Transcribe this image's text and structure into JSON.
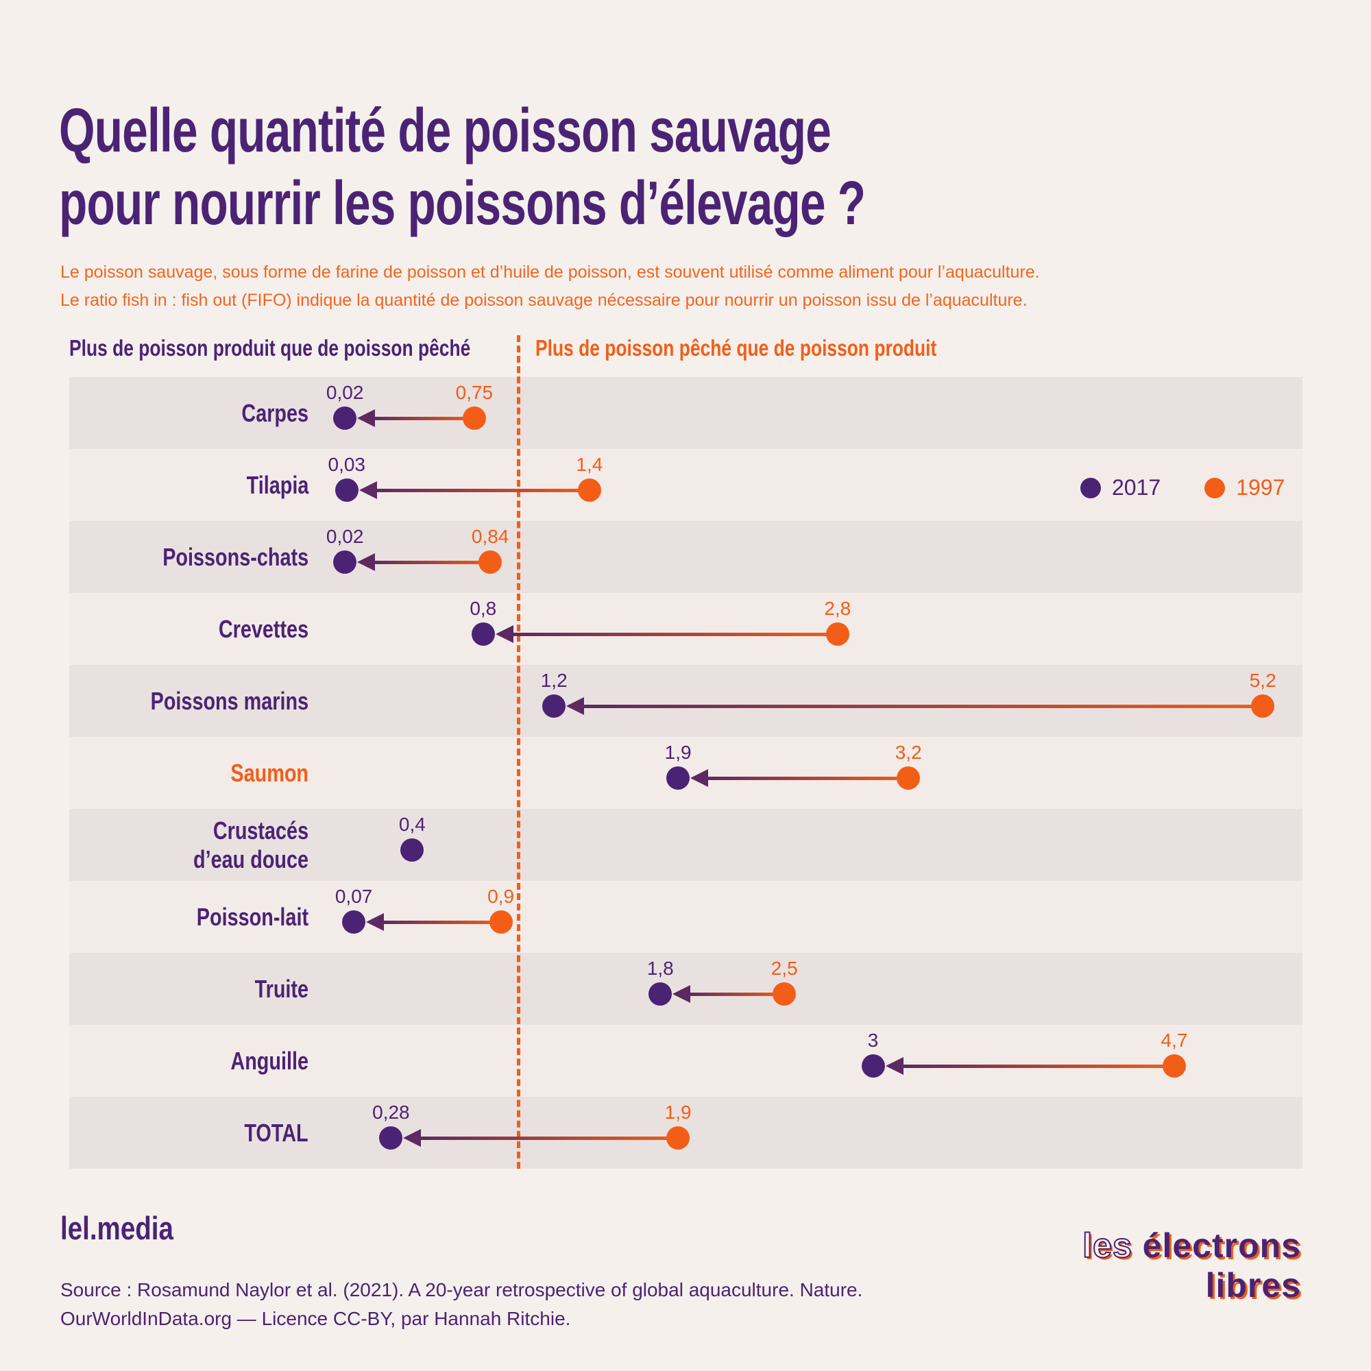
{
  "title": {
    "line1": "Quelle quantité de poisson sauvage",
    "line2": "pour nourrir les poissons d’élevage ?"
  },
  "subtitle": {
    "line1": "Le poisson sauvage, sous forme de farine de poisson et d’huile de poisson, est souvent utilisé comme aliment pour l’aquaculture.",
    "line2": "Le ratio fish in : fish out (FIFO) indique la quantité de poisson sauvage nécessaire pour nourrir un poisson issu de l’aquaculture."
  },
  "axis": {
    "left_header": "Plus de poisson produit que de poisson pêché",
    "right_header": "Plus de poisson pêché que de poisson produit"
  },
  "legend": [
    {
      "label": "2017",
      "color": "#4B2375"
    },
    {
      "label": "1997",
      "color": "#F25E17"
    }
  ],
  "chart_data": {
    "type": "dumbbell-arrow",
    "unit": "ratio fish in : fish out (FIFO)",
    "reference_line_value": 1,
    "x_range": [
      0,
      5.4
    ],
    "series": [
      "2017",
      "1997"
    ],
    "rows": [
      {
        "label": [
          "Carpes"
        ],
        "v2017": 0.02,
        "v1997": 0.75,
        "d2017": "0,02",
        "d1997": "0,75"
      },
      {
        "label": [
          "Tilapia"
        ],
        "v2017": 0.03,
        "v1997": 1.4,
        "d2017": "0,03",
        "d1997": "1,4"
      },
      {
        "label": [
          "Poissons-chats"
        ],
        "v2017": 0.02,
        "v1997": 0.84,
        "d2017": "0,02",
        "d1997": "0,84"
      },
      {
        "label": [
          "Crevettes"
        ],
        "v2017": 0.8,
        "v1997": 2.8,
        "d2017": "0,8",
        "d1997": "2,8"
      },
      {
        "label": [
          "Poissons marins"
        ],
        "v2017": 1.2,
        "v1997": 5.2,
        "d2017": "1,2",
        "d1997": "5,2"
      },
      {
        "label": [
          "Saumon"
        ],
        "highlight": true,
        "v2017": 1.9,
        "v1997": 3.2,
        "d2017": "1,9",
        "d1997": "3,2"
      },
      {
        "label": [
          "Crustacés",
          "d’eau douce"
        ],
        "v2017": 0.4,
        "v1997": null,
        "d2017": "0,4",
        "d1997": null
      },
      {
        "label": [
          "Poisson-lait"
        ],
        "v2017": 0.07,
        "v1997": 0.9,
        "d2017": "0,07",
        "d1997": "0,9"
      },
      {
        "label": [
          "Truite"
        ],
        "v2017": 1.8,
        "v1997": 2.5,
        "d2017": "1,8",
        "d1997": "2,5"
      },
      {
        "label": [
          "Anguille"
        ],
        "v2017": 3,
        "v1997": 4.7,
        "d2017": "3",
        "d1997": "4,7"
      },
      {
        "label": [
          "TOTAL"
        ],
        "v2017": 0.28,
        "v1997": 1.9,
        "d2017": "0,28",
        "d1997": "1,9"
      }
    ]
  },
  "footer": {
    "brand": "lel.media",
    "source_line1": "Source : Rosamund Naylor et al. (2021). A 20-year retrospective of global aquaculture. Nature.",
    "source_line2": "OurWorldInData.org — Licence CC-BY, par Hannah Ritchie."
  },
  "logo": {
    "line1_prefix": "les",
    "line1_rest": " électrons",
    "line2": "libres"
  },
  "colors": {
    "background": "#F5F0EC",
    "band_dark": "#E9E1DF",
    "band_light": "#F3EBE8",
    "purple": "#4B2375",
    "orange": "#F25E17",
    "arrow_head": "#5C2962"
  }
}
